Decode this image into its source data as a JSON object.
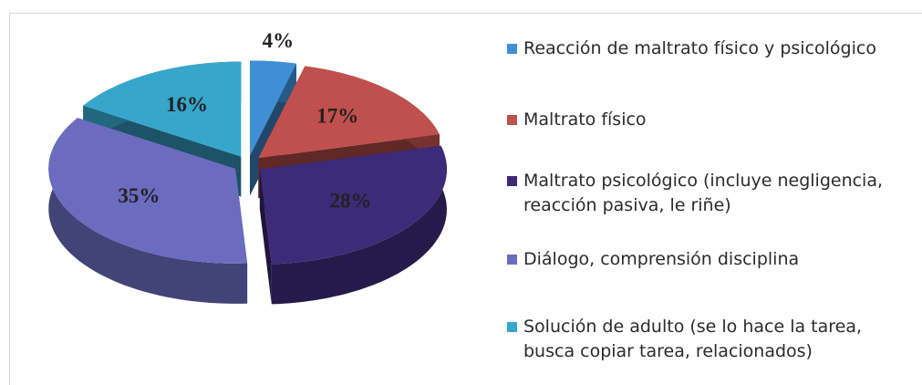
{
  "chart_data": {
    "type": "pie3d",
    "categories": [
      "Reacción de maltrato físico y psicológico",
      "Maltrato físico",
      "Maltrato psicológico (incluye negligencia, reacción pasiva, le riñe)",
      "Diálogo, comprensión disciplina",
      "Solución de adulto (se lo hace la tarea, busca copiar tarea, relacionados)"
    ],
    "values": [
      4,
      17,
      28,
      35,
      16
    ],
    "value_labels": [
      "4%",
      "17%",
      "28%",
      "35%",
      "16%"
    ],
    "colors": [
      "#3f8fd6",
      "#c0504d",
      "#3c2b78",
      "#6b6cbf",
      "#37a6cc"
    ],
    "legend": "right"
  }
}
